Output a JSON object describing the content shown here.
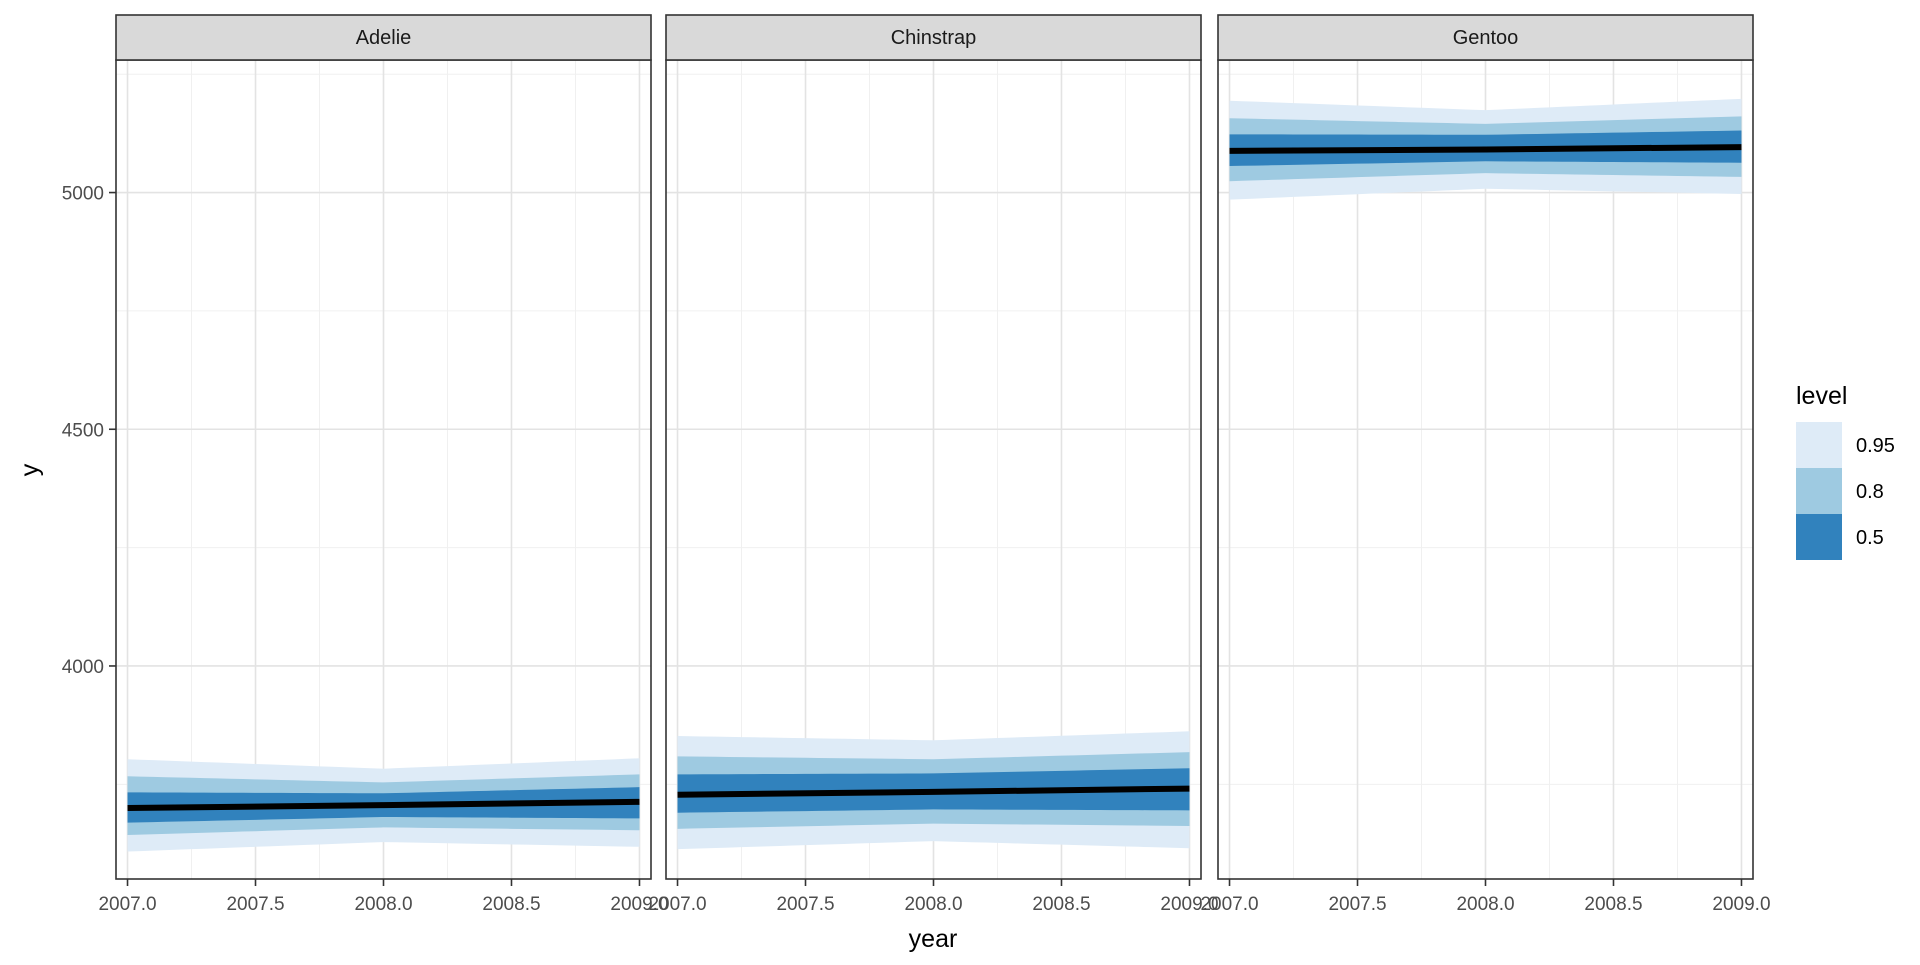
{
  "chart_data": {
    "type": "area",
    "title": "",
    "xlabel": "year",
    "ylabel": "y",
    "xlim": [
      2006.955,
      2009.045
    ],
    "ylim": [
      3550,
      5280
    ],
    "x_ticks": [
      2007.0,
      2007.5,
      2008.0,
      2008.5,
      2009.0
    ],
    "x_tick_labels": [
      "2007.0",
      "2007.5",
      "2008.0",
      "2008.5",
      "2009.0"
    ],
    "y_ticks": [
      4000,
      4500,
      5000
    ],
    "y_tick_labels": [
      "4000",
      "4500",
      "5000"
    ],
    "grid": true,
    "legend": {
      "title": "level",
      "position": "right",
      "entries": [
        {
          "label": "0.95",
          "color": "#deebf7"
        },
        {
          "label": "0.8",
          "color": "#9ecae1"
        },
        {
          "label": "0.5",
          "color": "#3182bd"
        }
      ]
    },
    "line_color": "#000000",
    "panels": [
      {
        "name": "Adelie",
        "x": [
          2007.0,
          2008.0,
          2009.0
        ],
        "y": [
          3700,
          3706,
          3713
        ],
        "intervals": {
          "0.95": {
            "lower": [
              3608,
              3628,
              3618
            ],
            "upper": [
              3803,
              3783,
              3805
            ]
          },
          "0.8": {
            "lower": [
              3643,
              3659,
              3653
            ],
            "upper": [
              3767,
              3754,
              3771
            ]
          },
          "0.5": {
            "lower": [
              3669,
              3681,
              3678
            ],
            "upper": [
              3733,
              3731,
              3744
            ]
          }
        }
      },
      {
        "name": "Chinstrap",
        "x": [
          2007.0,
          2008.0,
          2009.0
        ],
        "y": [
          3728,
          3734,
          3741
        ],
        "intervals": {
          "0.95": {
            "lower": [
              3613,
              3630,
              3615
            ],
            "upper": [
              3852,
              3843,
              3862
            ]
          },
          "0.8": {
            "lower": [
              3656,
              3667,
              3662
            ],
            "upper": [
              3809,
              3803,
              3818
            ]
          },
          "0.5": {
            "lower": [
              3690,
              3697,
              3695
            ],
            "upper": [
              3771,
              3773,
              3784
            ]
          }
        }
      },
      {
        "name": "Gentoo",
        "x": [
          2007.0,
          2008.0,
          2009.0
        ],
        "y": [
          5088,
          5091,
          5096
        ],
        "intervals": {
          "0.95": {
            "lower": [
              4985,
              5008,
              4997
            ],
            "upper": [
              5194,
              5174,
              5198
            ]
          },
          "0.8": {
            "lower": [
              5024,
              5041,
              5033
            ],
            "upper": [
              5157,
              5145,
              5161
            ]
          },
          "0.5": {
            "lower": [
              5056,
              5066,
              5063
            ],
            "upper": [
              5123,
              5122,
              5131
            ]
          }
        }
      }
    ]
  }
}
